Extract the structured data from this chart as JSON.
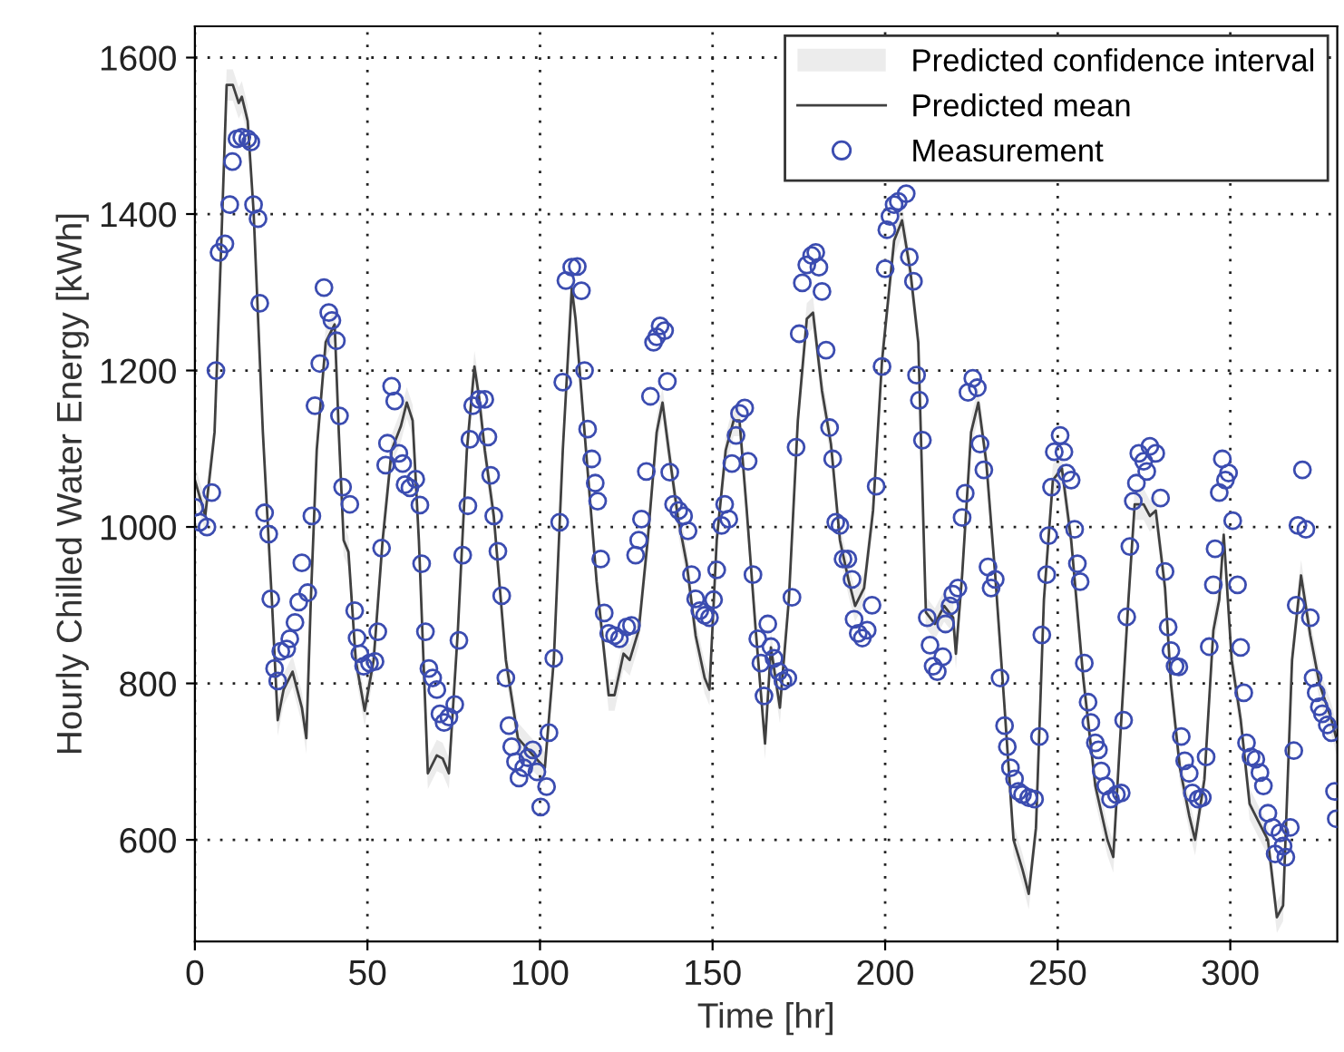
{
  "chart_data": {
    "type": "line",
    "xlabel": "Time [hr]",
    "ylabel": "Hourly Chilled Water Energy [kWh]",
    "annotations": [
      "Predicted confidence interval"
    ],
    "xlim": [
      0,
      331
    ],
    "ylim": [
      470,
      1640
    ],
    "xticks": [
      0,
      50,
      100,
      150,
      200,
      250,
      300
    ],
    "yticks": [
      600,
      800,
      1000,
      1200,
      1400,
      1600
    ],
    "grid": true,
    "legend": "top right",
    "series": [
      {
        "name": "Predicted mean",
        "color": "#404040",
        "line_style": "solid",
        "x": [
          0,
          3,
          5.7,
          7.5,
          9.2,
          11,
          12.7,
          13.6,
          15.3,
          17,
          19.7,
          22.3,
          24,
          25.7,
          28.3,
          31,
          32.3,
          33.6,
          35.3,
          37.9,
          40.5,
          41.7,
          43.1,
          44.5,
          46.6,
          49.2,
          51.8,
          54.4,
          57,
          59.7,
          61.4,
          63.1,
          64.9,
          67.5,
          70.1,
          71.8,
          73.6,
          76.2,
          78.8,
          81,
          82.3,
          84,
          86.6,
          90.1,
          93.6,
          98,
          101.4,
          104,
          106.6,
          109.2,
          110.3,
          112.9,
          116.4,
          119.9,
          121.6,
          124.2,
          126,
          128.6,
          131.2,
          133.8,
          135.5,
          137.3,
          139.9,
          142.5,
          145.1,
          147.7,
          149.1,
          151.2,
          153.8,
          156.1,
          157.8,
          159.9,
          162.5,
          165.2,
          166.9,
          169.5,
          172.1,
          174.7,
          177.3,
          179.1,
          181.7,
          184.3,
          186.9,
          189.5,
          191.3,
          193.9,
          196.5,
          199.1,
          202.6,
          204.9,
          207.3,
          209.6,
          211.8,
          214.4,
          217.1,
          219.7,
          220.5,
          222.3,
          224.9,
          227,
          229.3,
          231.9,
          234.6,
          237.2,
          239.8,
          241.6,
          243.7,
          246,
          248.6,
          251.2,
          253.9,
          257.4,
          260.9,
          264.4,
          266.1,
          267.9,
          270.5,
          272.3,
          274.9,
          276.7,
          278.4,
          281.1,
          282.8,
          285.4,
          288.1,
          289.8,
          292.5,
          295.1,
          296.8,
          298.1,
          300.4,
          303,
          305.6,
          308.2,
          310.9,
          313.5,
          315.3,
          317.9,
          320.5,
          323.2,
          325.8,
          329.3,
          331
        ],
        "values": [
          1060,
          1014,
          1121,
          1343,
          1565,
          1565,
          1542,
          1550,
          1519,
          1404,
          1121,
          907,
          753,
          792,
          815,
          769,
          730,
          907,
          1098,
          1236,
          1259,
          1121,
          983,
          968,
          830,
          765,
          830,
          983,
          1098,
          1129,
          1159,
          1136,
          983,
          685,
          708,
          704,
          685,
          868,
          1098,
          1205,
          1167,
          1098,
          1014,
          830,
          730,
          708,
          692,
          830,
          1098,
          1305,
          1266,
          1121,
          930,
          785,
          785,
          838,
          830,
          868,
          983,
          1121,
          1159,
          1098,
          1014,
          953,
          861,
          807,
          792,
          983,
          1098,
          1136,
          1136,
          1021,
          868,
          723,
          846,
          769,
          907,
          1136,
          1266,
          1274,
          1174,
          1106,
          983,
          930,
          899,
          922,
          1021,
          1213,
          1366,
          1392,
          1327,
          1236,
          891,
          876,
          899,
          884,
          838,
          938,
          1121,
          1159,
          1083,
          938,
          769,
          600,
          562,
          531,
          615,
          907,
          1060,
          1075,
          983,
          807,
          669,
          600,
          578,
          715,
          907,
          1029,
          1029,
          1014,
          1021,
          922,
          800,
          692,
          631,
          600,
          677,
          868,
          907,
          990,
          830,
          754,
          646,
          623,
          600,
          501,
          516,
          830,
          938,
          861,
          800,
          754,
          725
        ],
        "lower": [
          1040,
          994,
          1101,
          1323,
          1545,
          1545,
          1522,
          1530,
          1499,
          1384,
          1101,
          887,
          733,
          772,
          795,
          749,
          710,
          887,
          1078,
          1216,
          1239,
          1101,
          963,
          948,
          810,
          745,
          810,
          963,
          1078,
          1109,
          1139,
          1116,
          963,
          665,
          688,
          684,
          665,
          848,
          1078,
          1185,
          1147,
          1078,
          994,
          810,
          710,
          688,
          672,
          810,
          1078,
          1285,
          1246,
          1101,
          910,
          765,
          765,
          818,
          810,
          848,
          963,
          1101,
          1139,
          1078,
          994,
          933,
          841,
          787,
          772,
          963,
          1078,
          1116,
          1116,
          1001,
          848,
          703,
          826,
          749,
          887,
          1116,
          1246,
          1254,
          1154,
          1086,
          963,
          910,
          879,
          902,
          1001,
          1193,
          1346,
          1372,
          1307,
          1216,
          871,
          856,
          879,
          864,
          818,
          918,
          1101,
          1139,
          1063,
          918,
          749,
          580,
          542,
          511,
          595,
          887,
          1040,
          1055,
          963,
          787,
          649,
          580,
          558,
          695,
          887,
          1009,
          1009,
          994,
          1001,
          902,
          780,
          672,
          611,
          580,
          657,
          848,
          887,
          970,
          810,
          734,
          626,
          603,
          580,
          481,
          496,
          810,
          918,
          841,
          780,
          734,
          705
        ],
        "upper": [
          1080,
          1034,
          1141,
          1363,
          1585,
          1585,
          1562,
          1570,
          1539,
          1424,
          1141,
          927,
          773,
          812,
          835,
          789,
          750,
          927,
          1118,
          1256,
          1279,
          1141,
          1003,
          988,
          850,
          785,
          850,
          1003,
          1118,
          1149,
          1179,
          1156,
          1003,
          705,
          728,
          724,
          705,
          888,
          1118,
          1225,
          1187,
          1118,
          1034,
          850,
          750,
          728,
          712,
          850,
          1118,
          1325,
          1286,
          1141,
          950,
          805,
          805,
          858,
          850,
          888,
          1003,
          1141,
          1179,
          1118,
          1034,
          973,
          881,
          827,
          812,
          1003,
          1118,
          1156,
          1156,
          1041,
          888,
          743,
          866,
          789,
          927,
          1156,
          1286,
          1294,
          1194,
          1126,
          1003,
          950,
          919,
          942,
          1041,
          1233,
          1386,
          1412,
          1347,
          1256,
          911,
          896,
          919,
          904,
          858,
          958,
          1141,
          1179,
          1103,
          958,
          789,
          620,
          582,
          551,
          635,
          927,
          1080,
          1095,
          1003,
          827,
          689,
          620,
          598,
          735,
          927,
          1049,
          1049,
          1034,
          1041,
          942,
          820,
          712,
          651,
          620,
          697,
          888,
          927,
          1010,
          850,
          774,
          666,
          643,
          620,
          521,
          536,
          850,
          958,
          881,
          820,
          774,
          745
        ]
      },
      {
        "name": "Measurement",
        "type": "scatter",
        "color": "#3b4cb0",
        "marker": "circle",
        "x": [
          0,
          1.4,
          3.5,
          4.9,
          6.1,
          7,
          8.7,
          10.1,
          10.9,
          12.2,
          13.6,
          15.3,
          16.2,
          17,
          18.3,
          18.8,
          20.2,
          21.4,
          22,
          23.1,
          24,
          24.9,
          26.6,
          27.5,
          29,
          30.1,
          31,
          32.7,
          33.9,
          34.8,
          36.2,
          37.4,
          38.8,
          39.7,
          41,
          41.9,
          42.8,
          44.9,
          46.3,
          47,
          47.8,
          48.9,
          50.6,
          52.2,
          53,
          54.1,
          55.3,
          55.8,
          57,
          57.9,
          59.1,
          60.2,
          60.9,
          62.3,
          64,
          65.2,
          65.7,
          66.8,
          67.8,
          68.9,
          70.1,
          71,
          72.2,
          73.6,
          75.3,
          76.5,
          77.6,
          79.1,
          79.7,
          80.5,
          82.3,
          84,
          84.9,
          85.7,
          86.6,
          87.8,
          88.9,
          90.1,
          91,
          91.8,
          92.9,
          93.9,
          95.3,
          96.5,
          97.9,
          99.1,
          100.2,
          101.9,
          102.6,
          104,
          105.7,
          106.6,
          107.5,
          109.2,
          110.8,
          112,
          112.9,
          113.8,
          115,
          116,
          116.7,
          117.6,
          118.6,
          119.9,
          121.6,
          123,
          125.1,
          126.5,
          127.7,
          128.6,
          129.4,
          130.8,
          132,
          132.9,
          133.8,
          134.8,
          136.1,
          136.9,
          137.6,
          138.7,
          140.2,
          141.6,
          142.9,
          143.9,
          145.1,
          146.3,
          147.7,
          149.1,
          150.3,
          151.2,
          152.6,
          153.5,
          154.7,
          155.6,
          156.8,
          157.8,
          159.3,
          160.3,
          161.7,
          163.1,
          164,
          164.9,
          166,
          166.9,
          167.8,
          169.2,
          170.4,
          171.8,
          173,
          174.2,
          175.1,
          176,
          177.3,
          178.7,
          179.9,
          180.8,
          181.7,
          182.9,
          183.9,
          184.8,
          185.7,
          186.9,
          187.8,
          189.2,
          190.4,
          191,
          192.2,
          193.4,
          194.8,
          196.2,
          197.4,
          199.1,
          200,
          200.5,
          201.4,
          202.6,
          203.8,
          206.1,
          207,
          208.2,
          209.1,
          209.9,
          210.8,
          212.2,
          213,
          213.9,
          215.1,
          216.7,
          217.5,
          218.8,
          219.6,
          221.1,
          222.3,
          223.2,
          224,
          225.4,
          226.7,
          227.5,
          228.6,
          229.8,
          230.7,
          231.9,
          233.3,
          234.6,
          235.4,
          236.3,
          237.5,
          238.6,
          239.8,
          241.6,
          243.3,
          244.7,
          245.4,
          246.8,
          247.4,
          248.2,
          249,
          250.7,
          251.8,
          252.5,
          253.9,
          254.9,
          255.7,
          256.5,
          257.7,
          258.8,
          259.6,
          260.9,
          261.8,
          262.6,
          263.9,
          265.3,
          267,
          268.4,
          269.1,
          270,
          270.9,
          271.9,
          272.8,
          273.5,
          274.9,
          275.8,
          276.7,
          278.4,
          279.8,
          281.1,
          282,
          282.8,
          284,
          285.1,
          285.8,
          286.8,
          288.1,
          289,
          290.7,
          291.9,
          293,
          293.9,
          295.1,
          295.6,
          296.8,
          297.7,
          298.6,
          299.5,
          300.7,
          302.1,
          303,
          303.9,
          304.7,
          306,
          307.4,
          308.6,
          309.6,
          310.9,
          312.3,
          313,
          314.4,
          315.3,
          316.1,
          317.4,
          318.4,
          319.1,
          319.6,
          320.9,
          321.9,
          323.2,
          324,
          324.9,
          325.8,
          326.7,
          328.1,
          329.3,
          330.2,
          330.7
        ],
        "values": [
          1025,
          1006,
          1000,
          1044,
          1200,
          1351,
          1362,
          1412,
          1467,
          1496,
          1498,
          1496,
          1492,
          1412,
          1394,
          1286,
          1018,
          991,
          908,
          819,
          803,
          841,
          844,
          857,
          878,
          904,
          954,
          916,
          1014,
          1155,
          1209,
          1306,
          1274,
          1264,
          1238,
          1142,
          1051,
          1029,
          893,
          858,
          838,
          822,
          826,
          828,
          866,
          973,
          1079,
          1107,
          1180,
          1161,
          1094,
          1081,
          1054,
          1050,
          1061,
          1028,
          953,
          866,
          819,
          807,
          792,
          761,
          750,
          757,
          773,
          855,
          964,
          1027,
          1112,
          1155,
          1163,
          1163,
          1115,
          1066,
          1014,
          969,
          912,
          807,
          746,
          719,
          700,
          679,
          692,
          705,
          715,
          687,
          642,
          668,
          737,
          832,
          1006,
          1185,
          1315,
          1332,
          1333,
          1302,
          1200,
          1125,
          1087,
          1056,
          1033,
          959,
          890,
          864,
          861,
          857,
          872,
          874,
          964,
          983,
          1010,
          1071,
          1167,
          1236,
          1243,
          1257,
          1251,
          1186,
          1070,
          1029,
          1021,
          1014,
          995,
          939,
          908,
          893,
          887,
          884,
          907,
          945,
          1002,
          1029,
          1010,
          1081,
          1117,
          1145,
          1152,
          1084,
          939,
          857,
          826,
          784,
          876,
          847,
          832,
          815,
          803,
          807,
          910,
          1102,
          1247,
          1312,
          1335,
          1347,
          1351,
          1332,
          1301,
          1226,
          1127,
          1087,
          1006,
          1002,
          959,
          959,
          933,
          882,
          864,
          858,
          868,
          900,
          1052,
          1205,
          1330,
          1380,
          1397,
          1412,
          1416,
          1426,
          1345,
          1314,
          1194,
          1162,
          1111,
          884,
          849,
          822,
          815,
          834,
          876,
          899,
          914,
          922,
          1012,
          1043,
          1172,
          1190,
          1178,
          1106,
          1073,
          949,
          922,
          933,
          807,
          746,
          719,
          692,
          678,
          662,
          658,
          654,
          652,
          732,
          862,
          939,
          989,
          1051,
          1096,
          1117,
          1096,
          1069,
          1060,
          997,
          953,
          930,
          826,
          776,
          750,
          724,
          715,
          688,
          669,
          652,
          658,
          660,
          753,
          885,
          975,
          1033,
          1056,
          1094,
          1084,
          1071,
          1103,
          1094,
          1037,
          943,
          872,
          842,
          822,
          821,
          732,
          701,
          685,
          660,
          652,
          654,
          706,
          847,
          926,
          972,
          1044,
          1087,
          1060,
          1069,
          1008,
          926,
          846,
          788,
          724,
          706,
          703,
          686,
          669,
          634,
          616,
          582,
          609,
          592,
          578,
          616,
          714,
          900,
          1002,
          1073,
          997,
          884,
          807,
          788,
          770,
          761,
          747,
          737,
          662,
          627
        ]
      }
    ]
  }
}
